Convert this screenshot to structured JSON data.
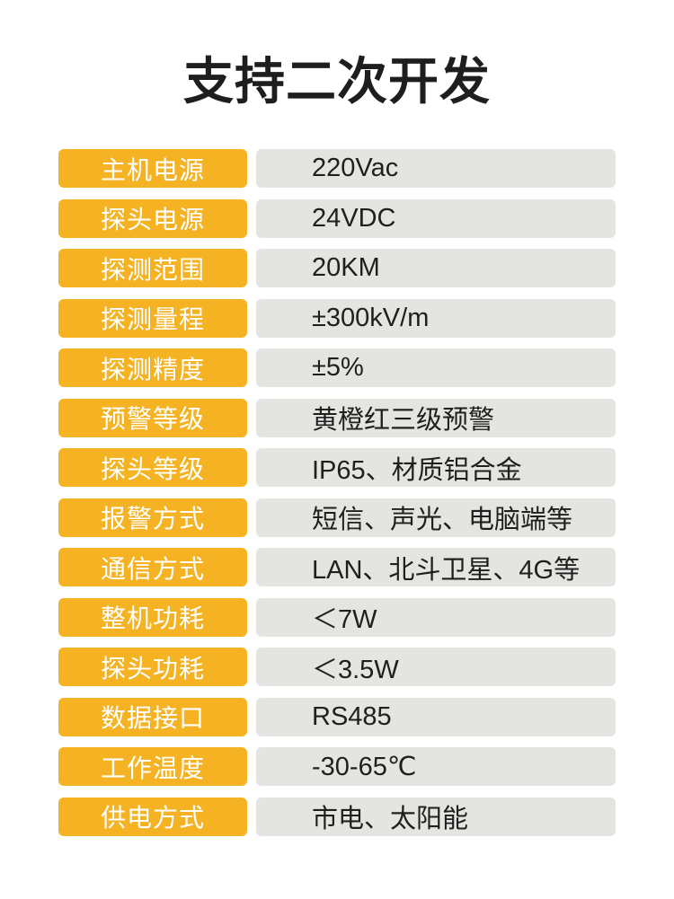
{
  "title": "支持二次开发",
  "colors": {
    "label_bg": "#F5B324",
    "value_bg": "#E4E5E1",
    "label_color": "#FFFFFF",
    "value_color": "#1F1F1F",
    "title_color": "#1E1E1E",
    "page_bg": "#FFFFFF"
  },
  "specs": [
    {
      "label": "主机电源",
      "value": "220Vac"
    },
    {
      "label": "探头电源",
      "value": "24VDC"
    },
    {
      "label": "探测范围",
      "value": "20KM"
    },
    {
      "label": "探测量程",
      "value": "±300kV/m"
    },
    {
      "label": "探测精度",
      "value": "±5%"
    },
    {
      "label": "预警等级",
      "value": "黄橙红三级预警"
    },
    {
      "label": "探头等级",
      "value": "IP65、材质铝合金"
    },
    {
      "label": "报警方式",
      "value": "短信、声光、电脑端等"
    },
    {
      "label": "通信方式",
      "value": "LAN、北斗卫星、4G等"
    },
    {
      "label": "整机功耗",
      "value": "＜7W"
    },
    {
      "label": "探头功耗",
      "value": "＜3.5W"
    },
    {
      "label": "数据接口",
      "value": "RS485"
    },
    {
      "label": "工作温度",
      "value": "-30-65℃"
    },
    {
      "label": "供电方式",
      "value": "市电、太阳能"
    }
  ]
}
